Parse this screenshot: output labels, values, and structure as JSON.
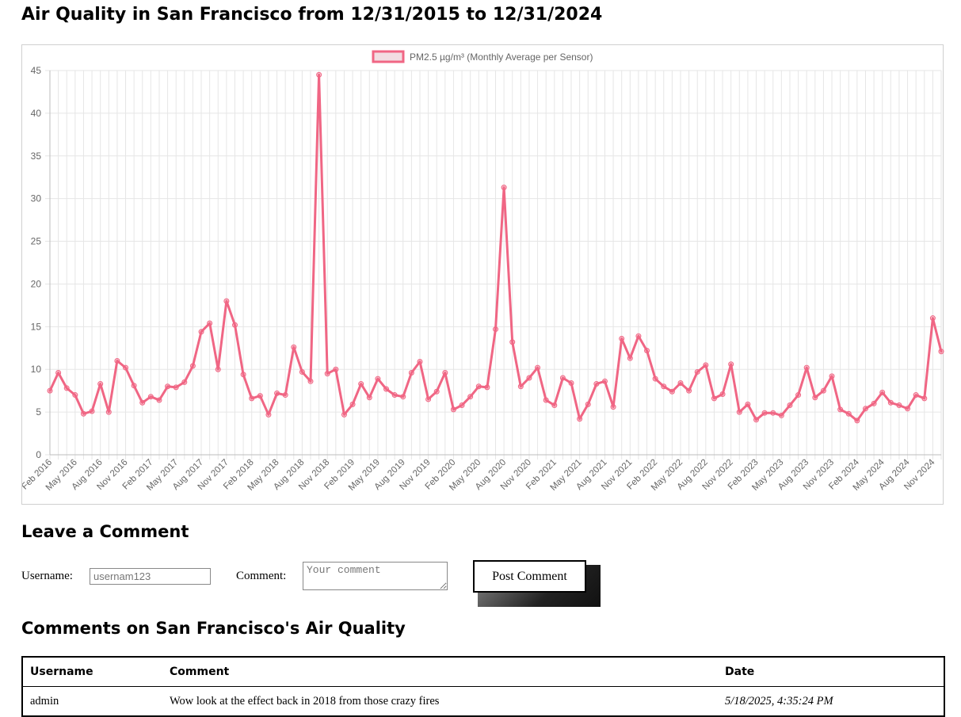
{
  "page": {
    "title": "Air Quality in San Francisco from 12/31/2015 to 12/31/2024"
  },
  "chart_data": {
    "type": "line",
    "series": [
      {
        "name": "PM2.5 µg/m³ (Monthly Average per Sensor)",
        "color": "#f06684",
        "values": [
          7.5,
          9.6,
          7.8,
          7.0,
          4.8,
          5.1,
          8.3,
          5.0,
          11.0,
          10.2,
          8.1,
          6.1,
          6.8,
          6.4,
          8.0,
          7.9,
          8.5,
          10.4,
          14.4,
          15.4,
          10.0,
          18.0,
          15.2,
          9.4,
          6.6,
          6.9,
          4.7,
          7.2,
          7.0,
          12.6,
          9.7,
          8.6,
          44.5,
          9.5,
          10.0,
          4.7,
          5.9,
          8.3,
          6.7,
          8.9,
          7.7,
          7.0,
          6.8,
          9.6,
          10.9,
          6.5,
          7.4,
          9.6,
          5.3,
          5.8,
          6.8,
          8.0,
          7.9,
          14.7,
          31.3,
          13.2,
          8.0,
          9.0,
          10.2,
          6.4,
          5.8,
          9.0,
          8.4,
          4.2,
          5.9,
          8.3,
          8.6,
          5.6,
          13.6,
          11.3,
          13.9,
          12.2,
          8.9,
          8.0,
          7.4,
          8.4,
          7.5,
          9.7,
          10.5,
          6.6,
          7.1,
          10.6,
          5.0,
          5.9,
          4.1,
          4.9,
          4.9,
          4.6,
          5.8,
          7.0,
          10.2,
          6.7,
          7.5,
          9.2,
          5.3,
          4.8,
          4.0,
          5.4,
          6.0,
          7.3,
          6.1,
          5.8,
          5.4,
          7.0,
          6.6,
          16.0,
          12.1
        ]
      }
    ],
    "x_labels": [
      "Feb 2016",
      "May 2016",
      "Aug 2016",
      "Nov 2016",
      "Feb 2017",
      "May 2017",
      "Aug 2017",
      "Nov 2017",
      "Feb 2018",
      "May 2018",
      "Aug 2018",
      "Nov 2018",
      "Feb 2019",
      "May 2019",
      "Aug 2019",
      "Nov 2019",
      "Feb 2020",
      "May 2020",
      "Aug 2020",
      "Nov 2020",
      "Feb 2021",
      "May 2021",
      "Aug 2021",
      "Nov 2021",
      "Feb 2022",
      "May 2022",
      "Aug 2022",
      "Nov 2022",
      "Feb 2023",
      "May 2023",
      "Aug 2023",
      "Nov 2023",
      "Feb 2024",
      "May 2024",
      "Aug 2024",
      "Nov 2024"
    ],
    "x_label_every": 3,
    "y_ticks": [
      0,
      5,
      10,
      15,
      20,
      25,
      30,
      35,
      40,
      45
    ],
    "ylim": [
      0,
      45
    ],
    "grid": true,
    "legend_position": "top-center"
  },
  "comment_form": {
    "heading": "Leave a Comment",
    "username_label": "Username:",
    "username_placeholder": "usernam123",
    "comment_label": "Comment:",
    "comment_placeholder": "Your comment",
    "submit_label": "Post Comment"
  },
  "comments": {
    "heading": "Comments on San Francisco's Air Quality",
    "columns": [
      "Username",
      "Comment",
      "Date"
    ],
    "rows": [
      {
        "username": "admin",
        "comment": "Wow look at the effect back in 2018 from those crazy fires",
        "date": "5/18/2025, 4:35:24 PM"
      }
    ]
  }
}
